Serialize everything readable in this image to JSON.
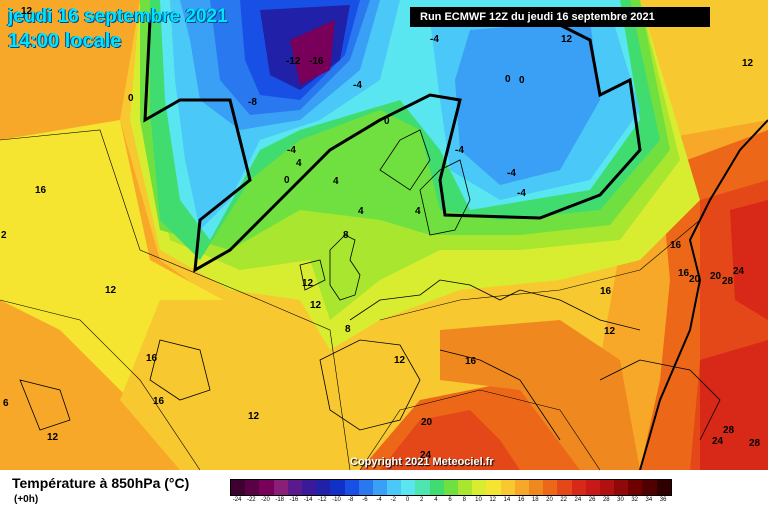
{
  "header": {
    "date": "jeudi 16 septembre 2021",
    "time": "14:00 locale",
    "run": "Run ECMWF 12Z du jeudi 16 septembre 2021"
  },
  "copyright": "Copyright 2021 Meteociel.fr",
  "legend": {
    "title": "Température à 850hPa (°C)",
    "subtitle": "(+0h)",
    "values": [
      "-24",
      "-22",
      "-20",
      "-18",
      "-16",
      "-14",
      "-12",
      "-10",
      "-8",
      "-6",
      "-4",
      "-2",
      "0",
      "2",
      "4",
      "6",
      "8",
      "10",
      "12",
      "14",
      "16",
      "18",
      "20",
      "22",
      "24",
      "26",
      "28",
      "30",
      "32",
      "34",
      "36"
    ],
    "colors": [
      "#3d0030",
      "#5a0045",
      "#78005a",
      "#8a1f7a",
      "#5a1a8c",
      "#3a1a9a",
      "#2020a8",
      "#1030c8",
      "#1850e6",
      "#2a78f0",
      "#3aa0f5",
      "#4ac8f8",
      "#5ae6f0",
      "#4ee6b0",
      "#40dc70",
      "#70e040",
      "#a8e630",
      "#d8ec30",
      "#f5e430",
      "#f8c830",
      "#f8a828",
      "#f08820",
      "#ec6818",
      "#e44818",
      "#d82818",
      "#c81818",
      "#b01010",
      "#900808",
      "#700000",
      "#500000",
      "#300000"
    ]
  },
  "isotherm_labels": [
    {
      "text": "-12"
    },
    {
      "text": "-16"
    },
    {
      "text": "-8"
    },
    {
      "text": "-4"
    },
    {
      "text": "-4"
    },
    {
      "text": "-4"
    },
    {
      "text": "0"
    },
    {
      "text": "0"
    },
    {
      "text": "0"
    },
    {
      "text": "0"
    },
    {
      "text": "0"
    },
    {
      "text": "4"
    },
    {
      "text": "4"
    },
    {
      "text": "4"
    },
    {
      "text": "4"
    },
    {
      "text": "-4"
    },
    {
      "text": "-4"
    },
    {
      "text": "-4"
    },
    {
      "text": "8"
    },
    {
      "text": "8"
    },
    {
      "text": "12"
    },
    {
      "text": "12"
    },
    {
      "text": "12"
    },
    {
      "text": "12"
    },
    {
      "text": "12"
    },
    {
      "text": "12"
    },
    {
      "text": "12"
    },
    {
      "text": "12"
    },
    {
      "text": "12"
    },
    {
      "text": "16"
    },
    {
      "text": "16"
    },
    {
      "text": "16"
    },
    {
      "text": "16"
    },
    {
      "text": "16"
    },
    {
      "text": "16"
    },
    {
      "text": "16"
    },
    {
      "text": "20"
    },
    {
      "text": "20"
    },
    {
      "text": "20"
    },
    {
      "text": "24"
    },
    {
      "text": "24"
    },
    {
      "text": "24"
    },
    {
      "text": "28"
    },
    {
      "text": "28"
    },
    {
      "text": "28"
    },
    {
      "text": "2"
    },
    {
      "text": "6"
    },
    {
      "text": "12"
    }
  ]
}
